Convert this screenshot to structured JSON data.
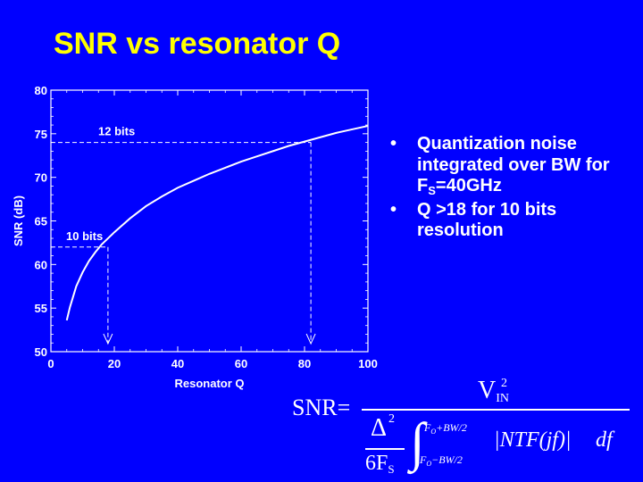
{
  "slide": {
    "title": "SNR vs resonator Q",
    "bullets": [
      {
        "text_before": "Quantization noise integrated over BW for F",
        "sub": "S",
        "text_after": "=40GHz"
      },
      {
        "text": "Q >18 for 10 bits resolution"
      }
    ],
    "bullet_glyph": "•",
    "formula": {
      "lhs": "SNR=",
      "numerator": "V",
      "numerator_sub": "IN",
      "numerator_sup": "2",
      "delta": "Δ",
      "delta_sup": "2",
      "six_f": "6F",
      "six_f_sub": "S",
      "upper_limit": "F",
      "upper_limit_sub": "O",
      "upper_limit_rest": "+BW/2",
      "lower_limit": "F",
      "lower_limit_sub": "O",
      "lower_limit_rest": "−BW/2",
      "integrand": "|NTF(jf)|",
      "df": "df"
    }
  },
  "chart_data": {
    "type": "line",
    "xlabel": "Resonator Q",
    "ylabel": "SNR (dB)",
    "xlim": [
      0,
      100
    ],
    "ylim": [
      50,
      80
    ],
    "xticks": [
      0,
      20,
      40,
      60,
      80,
      100
    ],
    "yticks": [
      50,
      55,
      60,
      65,
      70,
      75,
      80
    ],
    "series": [
      {
        "x": [
          5,
          6,
          8,
          10,
          12,
          14,
          16,
          18,
          20,
          25,
          30,
          35,
          40,
          45,
          50,
          55,
          60,
          65,
          70,
          75,
          80,
          85,
          90,
          95,
          100
        ],
        "y": [
          53.6,
          55.1,
          57.5,
          59.1,
          60.4,
          61.4,
          62.3,
          63.0,
          63.7,
          65.3,
          66.7,
          67.8,
          68.8,
          69.6,
          70.4,
          71.1,
          71.8,
          72.4,
          73.0,
          73.6,
          74.1,
          74.6,
          75.1,
          75.5,
          75.9
        ]
      }
    ],
    "annotations": [
      {
        "label": "12 bits",
        "snr": 74.0,
        "q": 82
      },
      {
        "label": "10 bits",
        "snr": 62.0,
        "q": 18
      }
    ],
    "colors": {
      "line": "#ffffff",
      "title": "#ffff00",
      "background": "#0000ff"
    }
  }
}
